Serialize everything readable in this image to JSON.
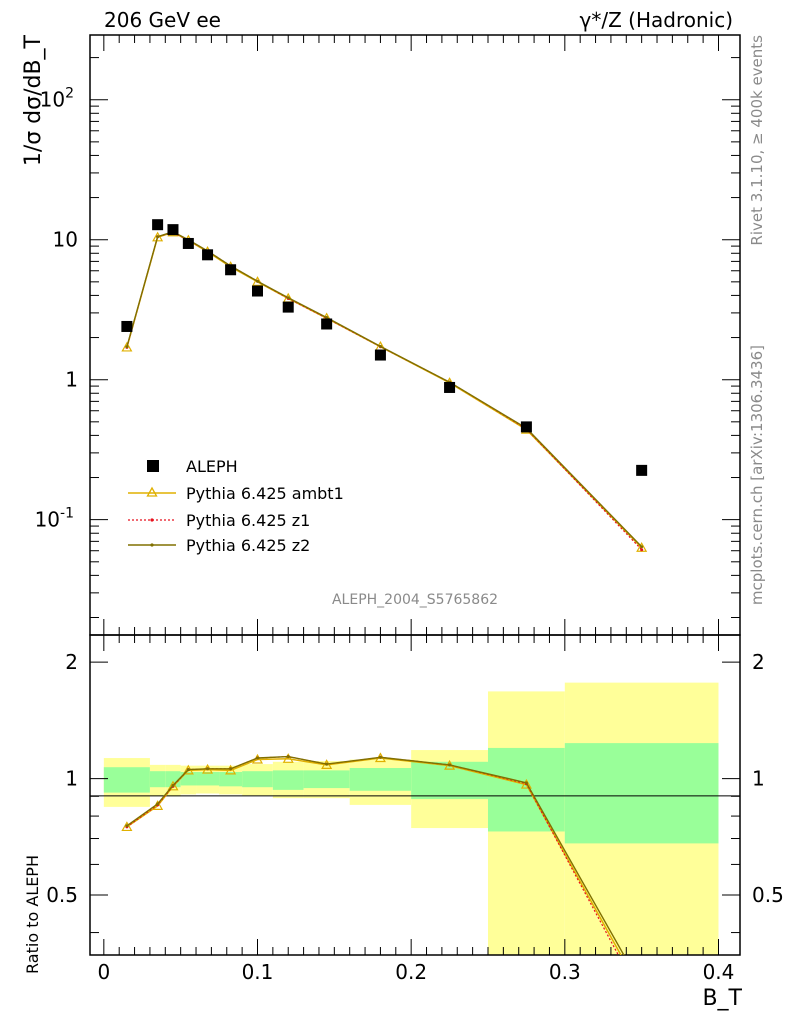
{
  "header": {
    "left": "206 GeV ee",
    "right": "γ*/Z (Hadronic)"
  },
  "side": {
    "rivet": "Rivet 3.1.10, ≥ 400k events",
    "mcplots": "mcplots.cern.ch [arXiv:1306.3436]"
  },
  "watermark": "ALEPH_2004_S5765862",
  "chart_data": {
    "type": "line",
    "xlabel": "B_T",
    "ylabel": "1/σ dσ/dB_T",
    "ratio_ylabel": "Ratio to ALEPH",
    "xlim": [
      -0.009,
      0.414
    ],
    "ylim": [
      0.015,
      290
    ],
    "yscale": "log",
    "ratio_ylim": [
      0.35,
      2.35
    ],
    "ratio_yscale": "log",
    "x_ticks": [
      "0",
      "0.1",
      "0.2",
      "0.3",
      "0.4"
    ],
    "y_ticks": [
      "10^-1",
      "1",
      "10",
      "10^2"
    ],
    "ratio_ticks": [
      "0.5",
      "1",
      "2"
    ],
    "legend": [
      "ALEPH",
      "Pythia 6.425 ambt1",
      "Pythia 6.425 z1",
      "Pythia 6.425 z2"
    ],
    "data": {
      "name": "ALEPH",
      "x": [
        0.015,
        0.035,
        0.045,
        0.055,
        0.0675,
        0.0825,
        0.1,
        0.12,
        0.145,
        0.18,
        0.225,
        0.275,
        0.35
      ],
      "y": [
        2.4,
        12.8,
        11.8,
        9.4,
        7.8,
        6.1,
        4.3,
        3.3,
        2.5,
        1.5,
        0.88,
        0.46,
        0.225
      ]
    },
    "series": [
      {
        "name": "Pythia 6.425 ambt1",
        "x": [
          0.015,
          0.035,
          0.045,
          0.055,
          0.0675,
          0.0825,
          0.1,
          0.12,
          0.145,
          0.18,
          0.225,
          0.275,
          0.35
        ],
        "y": [
          1.7,
          10.4,
          11.3,
          9.9,
          8.2,
          6.4,
          5.0,
          3.8,
          2.75,
          1.72,
          0.95,
          0.44,
          0.063
        ],
        "ratio": [
          0.75,
          0.85,
          0.955,
          1.05,
          1.055,
          1.05,
          1.12,
          1.125,
          1.085,
          1.13,
          1.08,
          0.965,
          0.28
        ]
      },
      {
        "name": "Pythia 6.425 z1",
        "x": [
          0.015,
          0.035,
          0.045,
          0.055,
          0.0675,
          0.0825,
          0.1,
          0.12,
          0.145,
          0.18,
          0.225,
          0.275,
          0.35
        ],
        "y": [
          1.7,
          10.5,
          11.3,
          9.9,
          8.3,
          6.5,
          5.05,
          3.8,
          2.75,
          1.72,
          0.96,
          0.445,
          0.061
        ],
        "ratio": [
          0.75,
          0.855,
          0.955,
          1.055,
          1.06,
          1.06,
          1.13,
          1.14,
          1.09,
          1.135,
          1.085,
          0.97,
          0.27
        ]
      },
      {
        "name": "Pythia 6.425 z2",
        "x": [
          0.015,
          0.035,
          0.045,
          0.055,
          0.0675,
          0.0825,
          0.1,
          0.12,
          0.145,
          0.18,
          0.225,
          0.275,
          0.35
        ],
        "y": [
          1.72,
          10.5,
          11.4,
          10.0,
          8.3,
          6.5,
          5.05,
          3.85,
          2.78,
          1.73,
          0.96,
          0.45,
          0.064
        ],
        "ratio": [
          0.755,
          0.86,
          0.96,
          1.055,
          1.06,
          1.06,
          1.13,
          1.14,
          1.09,
          1.135,
          1.085,
          0.975,
          0.29
        ]
      }
    ],
    "uncertainty_bands": {
      "edges": [
        0.0,
        0.03,
        0.04,
        0.05,
        0.06,
        0.075,
        0.09,
        0.11,
        0.13,
        0.16,
        0.2,
        0.25,
        0.3,
        0.4
      ],
      "inner_low": [
        0.92,
        0.95,
        0.95,
        0.96,
        0.96,
        0.955,
        0.95,
        0.935,
        0.945,
        0.93,
        0.885,
        0.73,
        0.68
      ],
      "inner_high": [
        1.07,
        1.045,
        1.045,
        1.04,
        1.04,
        1.04,
        1.045,
        1.05,
        1.05,
        1.065,
        1.105,
        1.2,
        1.235
      ],
      "outer_low": [
        0.845,
        0.9,
        0.9,
        0.91,
        0.915,
        0.91,
        0.905,
        0.89,
        0.89,
        0.855,
        0.745,
        0.35,
        0.35
      ],
      "outer_high": [
        1.13,
        1.085,
        1.085,
        1.08,
        1.08,
        1.08,
        1.09,
        1.105,
        1.11,
        1.12,
        1.185,
        1.68,
        1.77
      ]
    },
    "colors": {
      "data": "#000000",
      "ambt1": "#e0b000",
      "z1": "#e8121e",
      "z2": "#807000",
      "band_inner": "#99ff99",
      "band_outer": "#ffff99"
    }
  }
}
